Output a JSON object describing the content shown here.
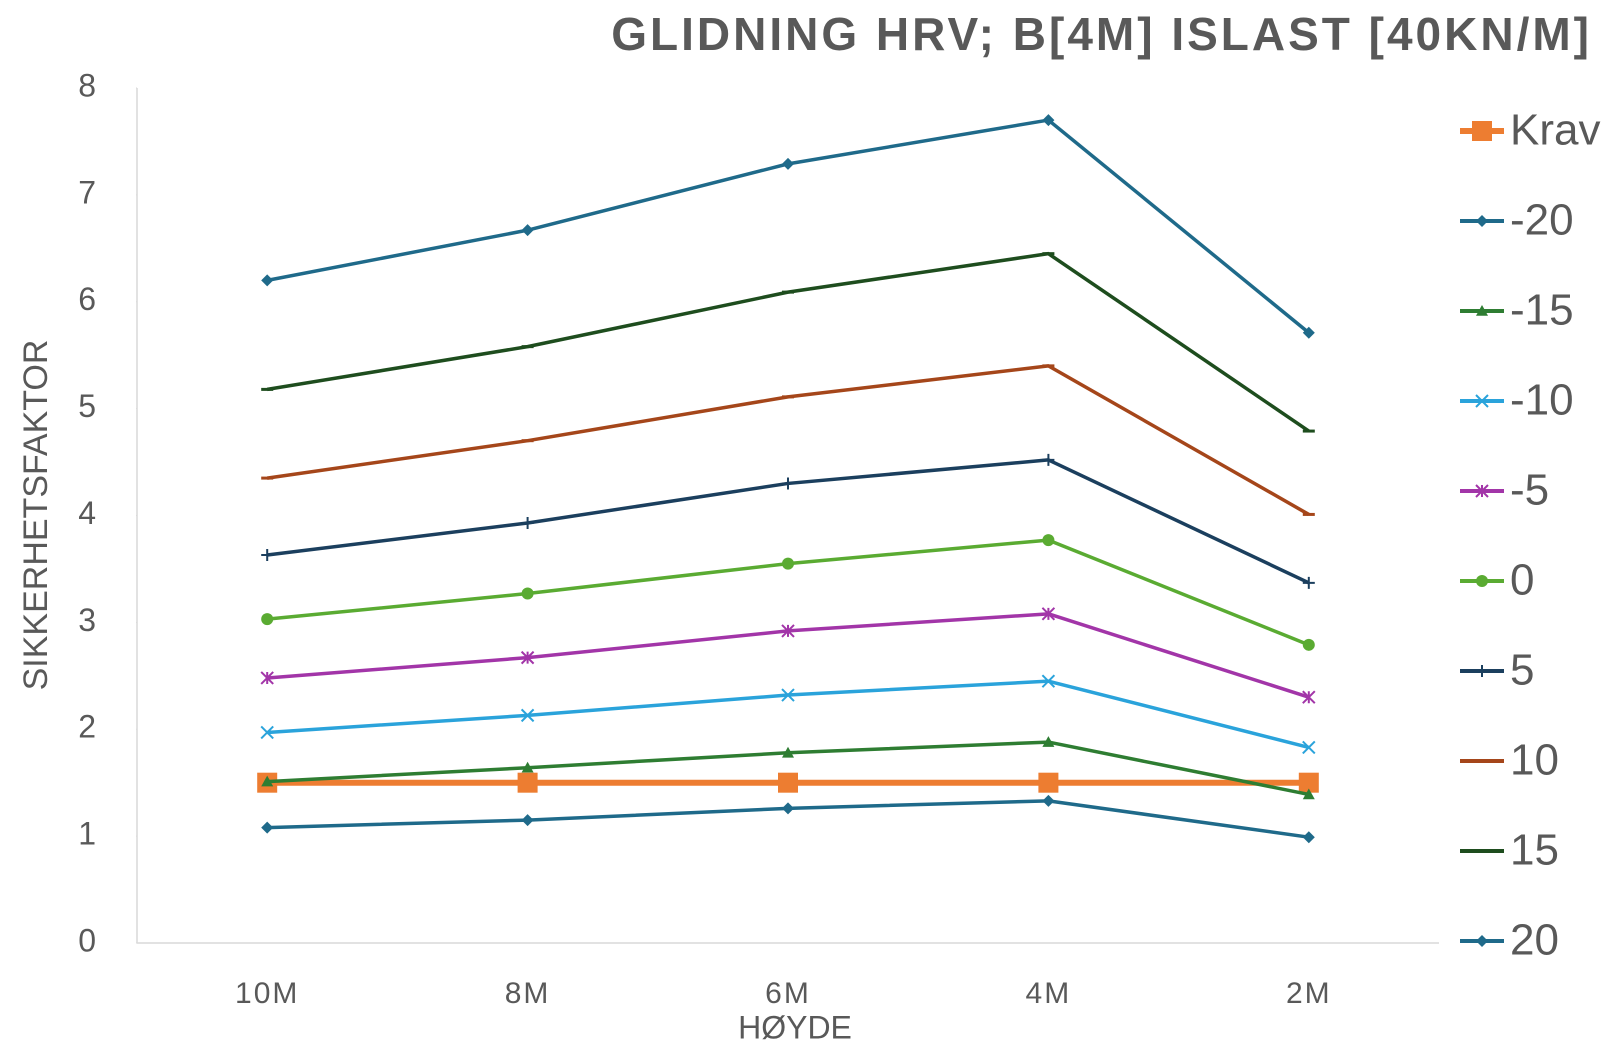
{
  "chart_data": {
    "type": "line",
    "title": "GLIDNING HRV; B[4M] ISLAST [40KN/M]",
    "x_label": "HØYDE",
    "y_label": "SIKKERHETSFAKTOR",
    "categories": [
      "10M",
      "8M",
      "6M",
      "4M",
      "2M"
    ],
    "ylim": [
      0,
      8
    ],
    "yticks": [
      0,
      1,
      2,
      3,
      4,
      5,
      6,
      7,
      8
    ],
    "legend": "right",
    "series": [
      {
        "name": "Krav",
        "color": "#ed7d31",
        "marker": "square",
        "values": [
          1.5,
          1.5,
          1.5,
          1.5,
          1.5
        ]
      },
      {
        "name": "-20",
        "color": "#1f6a8a",
        "marker": "diamond",
        "values": [
          1.08,
          1.15,
          1.26,
          1.33,
          0.99
        ]
      },
      {
        "name": "-15",
        "color": "#2e7d32",
        "marker": "triangle",
        "values": [
          1.51,
          1.64,
          1.78,
          1.88,
          1.39
        ]
      },
      {
        "name": "-10",
        "color": "#2aa3db",
        "marker": "x",
        "values": [
          1.97,
          2.13,
          2.32,
          2.45,
          1.83
        ]
      },
      {
        "name": "-5",
        "color": "#a235a8",
        "marker": "star",
        "values": [
          2.48,
          2.67,
          2.92,
          3.08,
          2.3
        ]
      },
      {
        "name": "0",
        "color": "#5aab32",
        "marker": "circle",
        "values": [
          3.03,
          3.27,
          3.55,
          3.77,
          2.79
        ]
      },
      {
        "name": "5",
        "color": "#1b3f5e",
        "marker": "plus",
        "values": [
          3.63,
          3.93,
          4.3,
          4.52,
          3.37
        ]
      },
      {
        "name": "10",
        "color": "#a5461a",
        "marker": "dash",
        "values": [
          4.35,
          4.7,
          5.11,
          5.4,
          4.01
        ]
      },
      {
        "name": "15",
        "color": "#1e4d1e",
        "marker": "dash",
        "values": [
          5.18,
          5.58,
          6.09,
          6.45,
          4.79
        ]
      },
      {
        "name": "20",
        "color": "#1f6a8a",
        "marker": "diamond",
        "values": [
          6.2,
          6.67,
          7.29,
          7.7,
          5.71
        ]
      }
    ]
  }
}
